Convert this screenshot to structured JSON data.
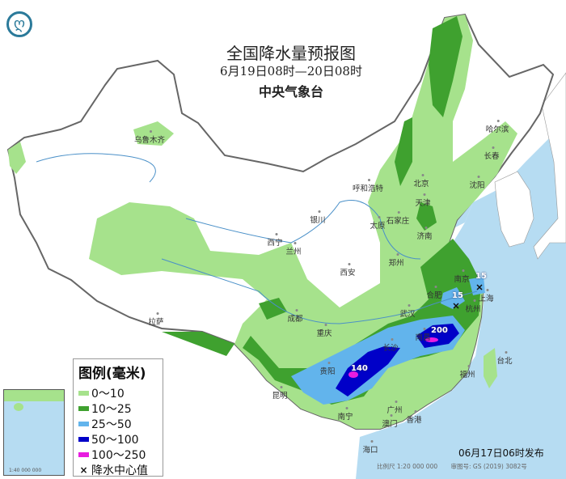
{
  "header": {
    "title": "全国降水量预报图",
    "period": "6月19日08时—20日08时",
    "issuer": "中央气象台",
    "logo_icon": "cma-logo-icon"
  },
  "legend": {
    "title": "图例(毫米)",
    "items": [
      {
        "label": "0～10",
        "color": "#a6e28c"
      },
      {
        "label": "10～25",
        "color": "#3fa12f"
      },
      {
        "label": "25～50",
        "color": "#62b4ec"
      },
      {
        "label": "50～100",
        "color": "#0000c8"
      },
      {
        "label": "100～250",
        "color": "#e81ce0"
      },
      {
        "label": "降水中心值",
        "marker": "×"
      }
    ]
  },
  "cities": [
    "乌鲁木齐",
    "哈尔滨",
    "长春",
    "沈阳",
    "呼和浩特",
    "北京",
    "天津",
    "石家庄",
    "太原",
    "济南",
    "银川",
    "西宁",
    "兰州",
    "郑州",
    "西安",
    "合肥",
    "南京",
    "上海",
    "杭州",
    "武汉",
    "成都",
    "重庆",
    "拉萨",
    "长沙",
    "南昌",
    "贵阳",
    "昆明",
    "南宁",
    "广州",
    "澳门",
    "香港",
    "海口",
    "福州",
    "台北"
  ],
  "rain_centers": [
    "15",
    "15",
    "200",
    "140"
  ],
  "inset": {
    "scale": "1:40 000 000"
  },
  "footer": {
    "issued": "06月17日06时发布",
    "scale": "比例尺 1:20 000 000",
    "approval": "审图号: GS (2019) 3082号"
  }
}
